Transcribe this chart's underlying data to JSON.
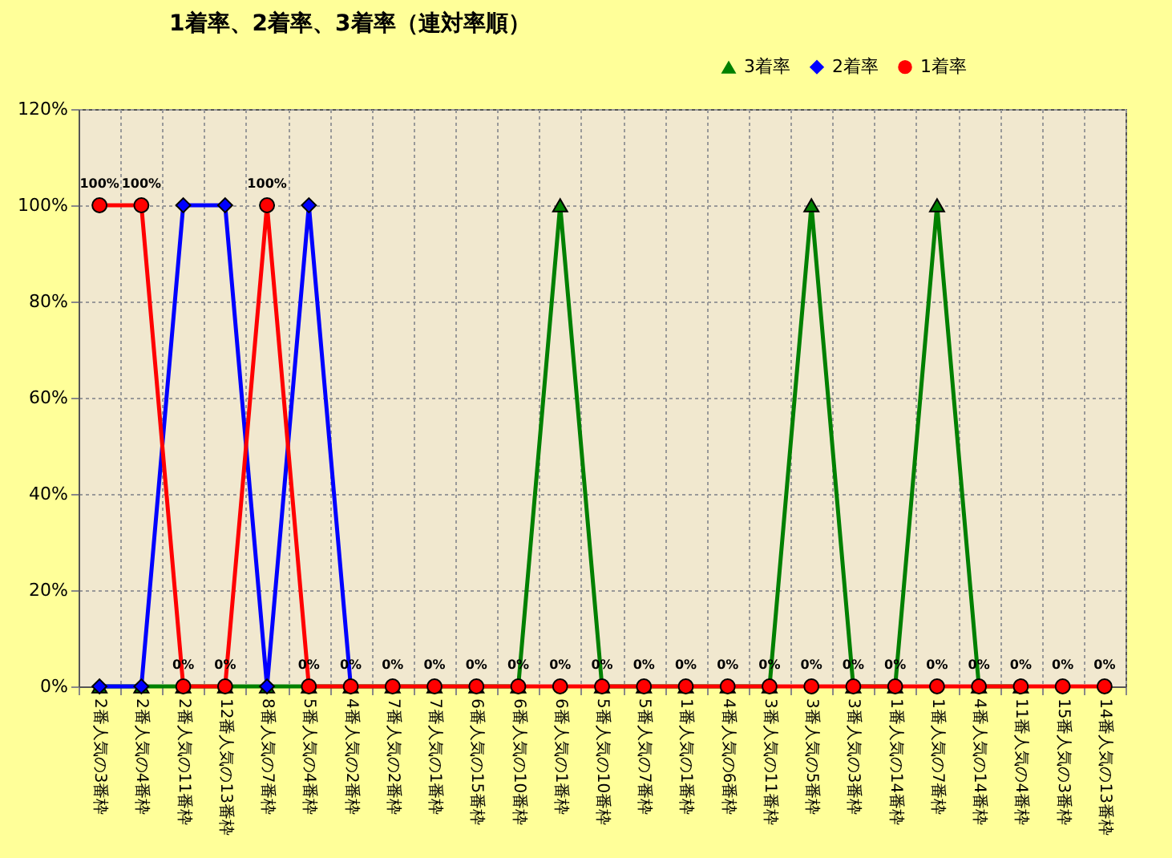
{
  "chart_data": {
    "type": "line",
    "title": "1着率、2着率、3着率（連対率順）",
    "categories": [
      "2番人気の3番枠",
      "2番人気の4番枠",
      "2番人気の11番枠",
      "12番人気の13番枠",
      "8番人気の7番枠",
      "5番人気の4番枠",
      "4番人気の2番枠",
      "7番人気の2番枠",
      "7番人気の1番枠",
      "6番人気の15番枠",
      "6番人気の10番枠",
      "6番人気の1番枠",
      "5番人気の10番枠",
      "5番人気の7番枠",
      "1番人気の1番枠",
      "4番人気の6番枠",
      "3番人気の11番枠",
      "3番人気の5番枠",
      "3番人気の3番枠",
      "1番人気の14番枠",
      "1番人気の7番枠",
      "4番人気の14番枠",
      "11番人気の4番枠",
      "15番人気の3番枠",
      "14番人気の13番枠"
    ],
    "series": [
      {
        "name": "3着率",
        "color": "#008000",
        "marker": "triangle",
        "values": [
          0,
          0,
          0,
          0,
          0,
          0,
          0,
          0,
          0,
          0,
          0,
          100,
          0,
          0,
          0,
          0,
          0,
          100,
          0,
          0,
          100,
          0,
          0,
          null,
          null
        ]
      },
      {
        "name": "2着率",
        "color": "#0000ff",
        "marker": "diamond",
        "values": [
          0,
          0,
          100,
          100,
          0,
          100,
          0,
          null,
          null,
          null,
          null,
          null,
          null,
          null,
          null,
          null,
          null,
          null,
          null,
          null,
          null,
          null,
          null,
          null,
          null
        ]
      },
      {
        "name": "1着率",
        "color": "#ff0000",
        "marker": "circle",
        "values": [
          100,
          100,
          0,
          0,
          100,
          0,
          0,
          0,
          0,
          0,
          0,
          0,
          0,
          0,
          0,
          0,
          0,
          0,
          0,
          0,
          0,
          0,
          0,
          0,
          0
        ],
        "value_labels": [
          "100%",
          "100%",
          "0%",
          "0%",
          "100%",
          "0%",
          "0%",
          "0%",
          "0%",
          "0%",
          "0%",
          "0%",
          "0%",
          "0%",
          "0%",
          "0%",
          "0%",
          "0%",
          "0%",
          "0%",
          "0%",
          "0%",
          "0%",
          "0%",
          "0%"
        ]
      }
    ],
    "ylim": [
      0,
      120
    ],
    "yticks": [
      {
        "value": 0,
        "label": "0%"
      },
      {
        "value": 20,
        "label": "20%"
      },
      {
        "value": 40,
        "label": "40%"
      },
      {
        "value": 60,
        "label": "60%"
      },
      {
        "value": 80,
        "label": "80%"
      },
      {
        "value": 100,
        "label": "100%"
      },
      {
        "value": 120,
        "label": "120%"
      }
    ],
    "grid": true,
    "legend": "top right",
    "line_style": "solid"
  }
}
